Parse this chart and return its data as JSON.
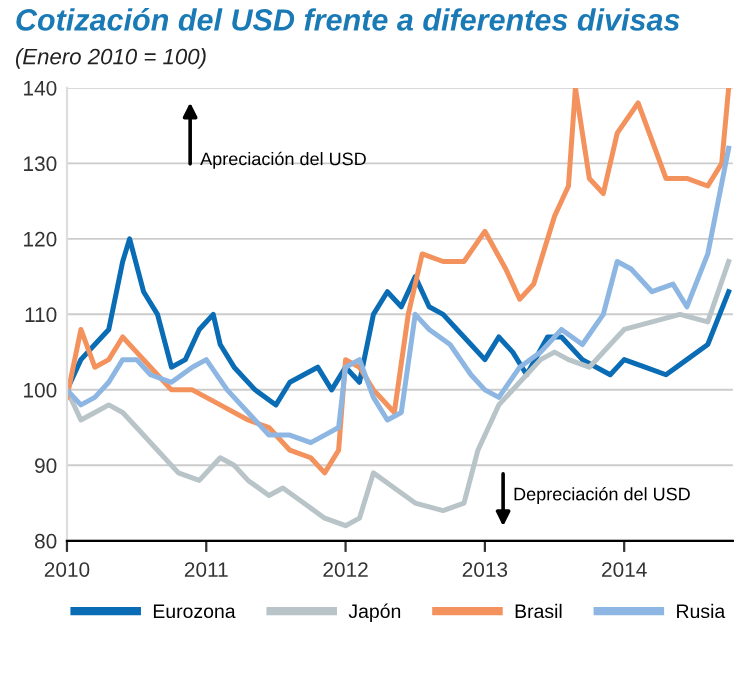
{
  "chart_data": {
    "type": "line",
    "title": "Cotización del USD frente a diferentes divisas",
    "subtitle": "(Enero 2010 = 100)",
    "annotations": [
      "Apreciación del USD",
      "Depreciación del USD"
    ],
    "xlim": [
      2010,
      2014.78
    ],
    "xticks": [
      2010,
      2011,
      2012,
      2013,
      2014
    ],
    "ylim": [
      80,
      140
    ],
    "yticks": [
      80,
      90,
      100,
      110,
      120,
      130,
      140
    ],
    "grid": "y",
    "legend": "bottom",
    "marker": "none",
    "line_style": "solid",
    "series": [
      {
        "name": "Eurozona",
        "color": "#0a6cb4",
        "x": [
          2010.0,
          2010.1,
          2010.2,
          2010.3,
          2010.4,
          2010.45,
          2010.55,
          2010.65,
          2010.75,
          2010.85,
          2010.95,
          2011.05,
          2011.1,
          2011.2,
          2011.35,
          2011.5,
          2011.6,
          2011.7,
          2011.8,
          2011.9,
          2012.0,
          2012.1,
          2012.2,
          2012.3,
          2012.4,
          2012.5,
          2012.6,
          2012.7,
          2012.8,
          2012.9,
          2013.0,
          2013.1,
          2013.2,
          2013.3,
          2013.45,
          2013.55,
          2013.7,
          2013.8,
          2013.9,
          2014.0,
          2014.15,
          2014.3,
          2014.45,
          2014.6,
          2014.75
        ],
        "values": [
          100,
          104,
          106,
          108,
          117,
          120,
          113,
          110,
          103,
          104,
          108,
          110,
          106,
          103,
          100,
          98,
          101,
          102,
          103,
          100,
          103,
          101,
          110,
          113,
          111,
          115,
          111,
          110,
          108,
          106,
          104,
          107,
          105,
          102,
          107,
          107,
          104,
          103,
          102,
          104,
          103,
          102,
          104,
          106,
          113
        ]
      },
      {
        "name": "Japón",
        "color": "#b8c4c8",
        "x": [
          2010.0,
          2010.1,
          2010.2,
          2010.3,
          2010.4,
          2010.5,
          2010.65,
          2010.8,
          2010.95,
          2011.1,
          2011.2,
          2011.3,
          2011.45,
          2011.55,
          2011.7,
          2011.85,
          2012.0,
          2012.1,
          2012.2,
          2012.35,
          2012.5,
          2012.7,
          2012.85,
          2012.95,
          2013.1,
          2013.25,
          2013.4,
          2013.5,
          2013.6,
          2013.75,
          2013.9,
          2014.0,
          2014.2,
          2014.4,
          2014.6,
          2014.75
        ],
        "values": [
          100,
          96,
          97,
          98,
          97,
          95,
          92,
          89,
          88,
          91,
          90,
          88,
          86,
          87,
          85,
          83,
          82,
          83,
          89,
          87,
          85,
          84,
          85,
          92,
          98,
          101,
          104,
          105,
          104,
          103,
          106,
          108,
          109,
          110,
          109,
          117
        ]
      },
      {
        "name": "Brasil",
        "color": "#f4925e",
        "x": [
          2010.0,
          2010.1,
          2010.2,
          2010.3,
          2010.4,
          2010.5,
          2010.6,
          2010.75,
          2010.9,
          2011.1,
          2011.3,
          2011.45,
          2011.6,
          2011.75,
          2011.85,
          2011.95,
          2012.0,
          2012.1,
          2012.2,
          2012.35,
          2012.45,
          2012.55,
          2012.7,
          2012.85,
          2013.0,
          2013.15,
          2013.25,
          2013.35,
          2013.5,
          2013.6,
          2013.65,
          2013.75,
          2013.85,
          2013.95,
          2014.1,
          2014.2,
          2014.3,
          2014.45,
          2014.6,
          2014.7,
          2014.75
        ],
        "values": [
          99,
          108,
          103,
          104,
          107,
          105,
          103,
          100,
          100,
          98,
          96,
          95,
          92,
          91,
          89,
          92,
          104,
          103,
          100,
          97,
          110,
          118,
          117,
          117,
          121,
          116,
          112,
          114,
          123,
          127,
          140,
          128,
          126,
          134,
          138,
          133,
          128,
          128,
          127,
          130,
          140
        ]
      },
      {
        "name": "Rusia",
        "color": "#8db6e3",
        "x": [
          2010.0,
          2010.1,
          2010.2,
          2010.3,
          2010.4,
          2010.5,
          2010.6,
          2010.75,
          2010.9,
          2011.0,
          2011.15,
          2011.3,
          2011.45,
          2011.6,
          2011.75,
          2011.85,
          2011.95,
          2012.0,
          2012.1,
          2012.2,
          2012.3,
          2012.4,
          2012.5,
          2012.6,
          2012.75,
          2012.9,
          2013.0,
          2013.1,
          2013.25,
          2013.4,
          2013.55,
          2013.7,
          2013.85,
          2013.95,
          2014.05,
          2014.2,
          2014.35,
          2014.45,
          2014.6,
          2014.75
        ],
        "values": [
          100,
          98,
          99,
          101,
          104,
          104,
          102,
          101,
          103,
          104,
          100,
          97,
          94,
          94,
          93,
          94,
          95,
          103,
          104,
          99,
          96,
          97,
          110,
          108,
          106,
          102,
          100,
          99,
          103,
          105,
          108,
          106,
          110,
          117,
          116,
          113,
          114,
          111,
          118,
          132
        ]
      }
    ]
  }
}
